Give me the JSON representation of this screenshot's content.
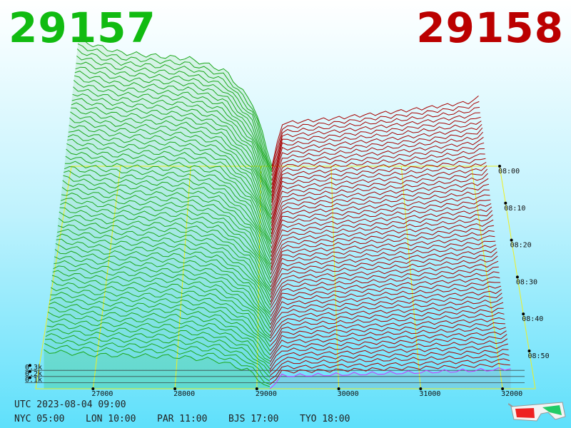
{
  "header": {
    "bid_price": "29157",
    "ask_price": "29158"
  },
  "colors": {
    "bid": "#11bb11",
    "ask": "#bb0000",
    "latest": "#cc33ff",
    "grid": "#eeee22"
  },
  "time_info": {
    "utc": "UTC 2023-08-04 09:00",
    "zones": [
      "NYC 05:00",
      "LON 10:00",
      "PAR 11:00",
      "BJS 17:00",
      "TYO 18:00"
    ]
  },
  "chart_data": {
    "type": "area",
    "title": "",
    "xlabel": "",
    "ylabel": "",
    "price_ticks": [
      "27000",
      "28000",
      "29000",
      "30000",
      "31000",
      "32000"
    ],
    "time_ticks": [
      "08:00",
      "08:10",
      "08:20",
      "08:30",
      "08:40",
      "08:50"
    ],
    "volume_ticks": [
      "0.1k",
      "0.2k",
      "0.3k"
    ],
    "x_range": [
      26300,
      32400
    ],
    "z_range": [
      0,
      0.95
    ],
    "price_labels": {
      "bid": "29157",
      "ask": "29158"
    },
    "snapshot_count": 60,
    "bid_depth_profile": {
      "prices": [
        26400,
        27000,
        28000,
        28500,
        28900,
        29157
      ],
      "cumulative_k": [
        0.82,
        0.74,
        0.7,
        0.62,
        0.4,
        0.0
      ]
    },
    "ask_depth_profile": {
      "prices": [
        29158,
        29300,
        30000,
        31000,
        32000,
        32100
      ],
      "cumulative_k": [
        0.0,
        0.28,
        0.31,
        0.36,
        0.42,
        0.45
      ]
    }
  }
}
